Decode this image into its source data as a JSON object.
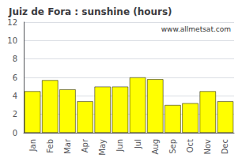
{
  "chart_data": {
    "type": "bar",
    "title": "Juiz de Fora : sunshine (hours)",
    "categories": [
      "Jan",
      "Feb",
      "Mar",
      "Apr",
      "May",
      "Jun",
      "Jul",
      "Aug",
      "Sep",
      "Oct",
      "Nov",
      "Dec"
    ],
    "values": [
      4.5,
      5.7,
      4.7,
      3.4,
      5.0,
      5.0,
      6.0,
      5.8,
      3.0,
      3.2,
      4.5,
      3.4
    ],
    "color": "#ffff00",
    "ylim": [
      0,
      12
    ],
    "yticks": [
      0,
      2,
      4,
      6,
      8,
      10,
      12
    ],
    "grid": true,
    "annotation": "www.allmetsat.com"
  }
}
